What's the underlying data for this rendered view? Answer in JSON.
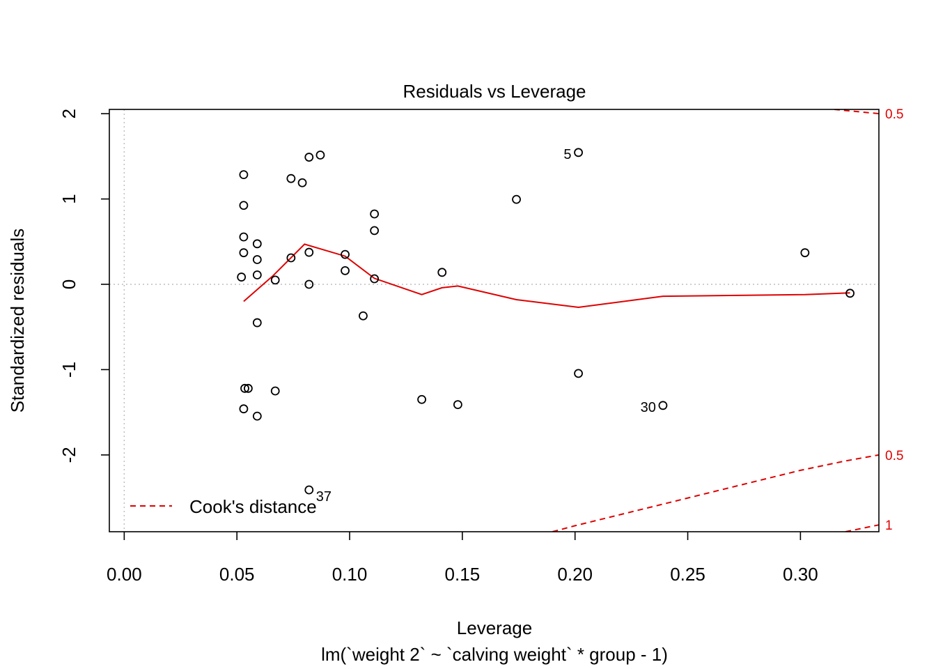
{
  "chart_data": {
    "type": "scatter",
    "title": "Residuals vs Leverage",
    "xlabel": "Leverage",
    "sublabel": "lm(`weight 2` ~ `calving weight` * group - 1)",
    "ylabel": "Standardized residuals",
    "xlim": [
      -0.0066,
      0.3348
    ],
    "ylim": [
      -2.9,
      2.05
    ],
    "x_ticks": [
      0.0,
      0.05,
      0.1,
      0.15,
      0.2,
      0.25,
      0.3
    ],
    "x_tick_labels": [
      "0.00",
      "0.05",
      "0.10",
      "0.15",
      "0.20",
      "0.25",
      "0.30"
    ],
    "y_ticks": [
      -2,
      -1,
      0,
      1,
      2
    ],
    "y_tick_labels": [
      "-2",
      "-1",
      "0",
      "1",
      "2"
    ],
    "points": [
      {
        "x": 0.053,
        "y": 1.285
      },
      {
        "x": 0.053,
        "y": 0.925
      },
      {
        "x": 0.053,
        "y": 0.555
      },
      {
        "x": 0.053,
        "y": 0.37
      },
      {
        "x": 0.052,
        "y": 0.085
      },
      {
        "x": 0.053,
        "y": -1.46
      },
      {
        "x": 0.0535,
        "y": -1.22
      },
      {
        "x": 0.055,
        "y": -1.22
      },
      {
        "x": 0.059,
        "y": 0.475
      },
      {
        "x": 0.059,
        "y": 0.29
      },
      {
        "x": 0.059,
        "y": 0.11
      },
      {
        "x": 0.059,
        "y": -0.45
      },
      {
        "x": 0.059,
        "y": -1.545
      },
      {
        "x": 0.067,
        "y": 0.05
      },
      {
        "x": 0.067,
        "y": -1.25
      },
      {
        "x": 0.074,
        "y": 1.24
      },
      {
        "x": 0.074,
        "y": 0.31
      },
      {
        "x": 0.079,
        "y": 1.19
      },
      {
        "x": 0.082,
        "y": 1.49
      },
      {
        "x": 0.082,
        "y": 0.375
      },
      {
        "x": 0.082,
        "y": 0.0
      },
      {
        "x": 0.082,
        "y": -2.41
      },
      {
        "x": 0.087,
        "y": 1.515
      },
      {
        "x": 0.098,
        "y": 0.35
      },
      {
        "x": 0.098,
        "y": 0.16
      },
      {
        "x": 0.106,
        "y": -0.37
      },
      {
        "x": 0.111,
        "y": 0.825
      },
      {
        "x": 0.111,
        "y": 0.63
      },
      {
        "x": 0.111,
        "y": 0.065
      },
      {
        "x": 0.132,
        "y": -1.35
      },
      {
        "x": 0.141,
        "y": 0.14
      },
      {
        "x": 0.148,
        "y": -1.41
      },
      {
        "x": 0.174,
        "y": 0.995
      },
      {
        "x": 0.2015,
        "y": 1.545
      },
      {
        "x": 0.2015,
        "y": -1.045
      },
      {
        "x": 0.239,
        "y": -1.42
      },
      {
        "x": 0.302,
        "y": 0.37
      },
      {
        "x": 0.322,
        "y": -0.105
      }
    ],
    "point_labels": [
      {
        "text": "5",
        "x": 0.2015,
        "y": 1.545,
        "side": "left"
      },
      {
        "text": "30",
        "x": 0.239,
        "y": -1.42,
        "side": "left"
      },
      {
        "text": "37",
        "x": 0.082,
        "y": -2.41,
        "side": "right"
      }
    ],
    "smooth_line": {
      "color": "#DF0000",
      "x": [
        0.053,
        0.066,
        0.08,
        0.098,
        0.111,
        0.132,
        0.141,
        0.148,
        0.174,
        0.2015,
        0.239,
        0.302,
        0.322
      ],
      "y": [
        -0.2,
        0.1,
        0.47,
        0.33,
        0.07,
        -0.12,
        -0.04,
        -0.02,
        -0.18,
        -0.27,
        -0.14,
        -0.12,
        -0.1
      ]
    },
    "reference_lines": {
      "h": 0,
      "v": 0,
      "color": "#BEBEBE"
    },
    "cooks_distance": {
      "color": "#DF0000",
      "levels": [
        0.5,
        1
      ],
      "curves": [
        {
          "level_label": "0.5",
          "sign": "positive",
          "x": [
            0.315,
            0.3348
          ],
          "y": [
            2.05,
            2.0
          ]
        },
        {
          "level_label": "0.5",
          "sign": "negative",
          "x": [
            0.19,
            0.2,
            0.22,
            0.24,
            0.26,
            0.28,
            0.3,
            0.32,
            0.3348
          ],
          "y": [
            -2.9,
            -2.83,
            -2.7,
            -2.57,
            -2.44,
            -2.31,
            -2.18,
            -2.07,
            -2.0
          ]
        },
        {
          "level_label": "1",
          "sign": "negative",
          "x": [
            0.32,
            0.3348
          ],
          "y": [
            -2.9,
            -2.82
          ]
        }
      ],
      "right_labels": [
        {
          "text": "0.5",
          "y": 2.0
        },
        {
          "text": "0.5",
          "y": -2.0
        },
        {
          "text": "1",
          "y": -2.82
        }
      ]
    },
    "legend": {
      "position": "bottom-left",
      "entries": [
        "Cook's distance"
      ]
    }
  }
}
